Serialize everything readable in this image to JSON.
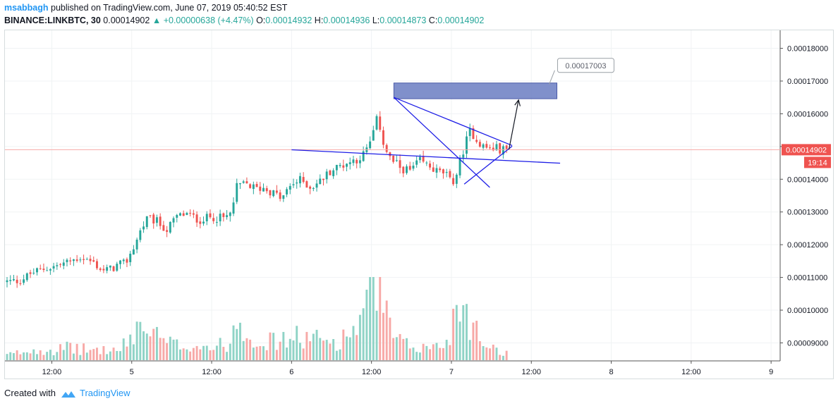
{
  "header": {
    "author": "msabbagh",
    "published_text": "published on TradingView.com, June 07, 2019 05:40:52 EST",
    "symbol": "BINANCE:LINKBTC, 30",
    "last": "0.00014902",
    "change": "+0.00000638 (+4.47%)",
    "o_label": "O:",
    "o_value": "0.00014932",
    "h_label": "H:",
    "h_value": "0.00014936",
    "l_label": "L:",
    "l_value": "0.00014873",
    "c_label": "C:",
    "c_value": "0.00014902"
  },
  "footer": {
    "created_with": "Created with",
    "brand": "TradingView"
  },
  "colors": {
    "up": "#26a69a",
    "down": "#ef5350",
    "vol_up": "#8fd3c6",
    "vol_down": "#f7a9a7",
    "line": "#1e1ee6",
    "zone": "#6a7cc2",
    "price_tag": "#ef5350"
  },
  "chart_data": {
    "type": "candlestick",
    "symbol": "BINANCE:LINKBTC",
    "interval": "30",
    "y_axis": {
      "range": [
        8.45e-05,
        0.0001855
      ],
      "ticks": [
        "0.00009000",
        "0.00010000",
        "0.00011000",
        "0.00012000",
        "0.00013000",
        "0.00014000",
        "0.00015000",
        "0.00016000",
        "0.00017000",
        "0.00018000"
      ]
    },
    "x_axis": {
      "ticks": [
        {
          "t": 0.28,
          "label": "12:00"
        },
        {
          "t": 0.78,
          "label": "5"
        },
        {
          "t": 1.28,
          "label": "12:00"
        },
        {
          "t": 1.78,
          "label": "6"
        },
        {
          "t": 2.28,
          "label": "12:00"
        },
        {
          "t": 2.78,
          "label": "7"
        },
        {
          "t": 3.28,
          "label": "12:00"
        },
        {
          "t": 3.78,
          "label": "8"
        },
        {
          "t": 4.28,
          "label": "12:00"
        },
        {
          "t": 4.78,
          "label": "9"
        }
      ]
    },
    "candle_interval_days": 0.0208333,
    "close_anchors": [
      [
        0.0,
        0.0001087
      ],
      [
        0.08,
        0.000109
      ],
      [
        0.16,
        0.0001115
      ],
      [
        0.24,
        0.0001127
      ],
      [
        0.32,
        0.0001137
      ],
      [
        0.4,
        0.000115
      ],
      [
        0.46,
        0.0001162
      ],
      [
        0.54,
        0.0001145
      ],
      [
        0.6,
        0.000112
      ],
      [
        0.66,
        0.0001128
      ],
      [
        0.7,
        0.000114
      ],
      [
        0.74,
        0.0001142
      ],
      [
        0.8,
        0.00012
      ],
      [
        0.84,
        0.000125
      ],
      [
        0.88,
        0.000128
      ],
      [
        0.94,
        0.000127
      ],
      [
        1.0,
        0.0001245
      ],
      [
        1.06,
        0.0001285
      ],
      [
        1.12,
        0.0001295
      ],
      [
        1.2,
        0.0001275
      ],
      [
        1.28,
        0.0001285
      ],
      [
        1.36,
        0.000128
      ],
      [
        1.4,
        0.0001295
      ],
      [
        1.44,
        0.000138
      ],
      [
        1.5,
        0.0001385
      ],
      [
        1.56,
        0.000137
      ],
      [
        1.6,
        0.0001375
      ],
      [
        1.66,
        0.000136
      ],
      [
        1.72,
        0.000134
      ],
      [
        1.78,
        0.0001385
      ],
      [
        1.84,
        0.0001398
      ],
      [
        1.9,
        0.0001375
      ],
      [
        1.96,
        0.0001395
      ],
      [
        2.02,
        0.0001425
      ],
      [
        2.1,
        0.0001445
      ],
      [
        2.18,
        0.000146
      ],
      [
        2.22,
        0.000147
      ],
      [
        2.26,
        0.0001495
      ],
      [
        2.32,
        0.000159
      ],
      [
        2.36,
        0.00015
      ],
      [
        2.4,
        0.000146
      ],
      [
        2.46,
        0.0001435
      ],
      [
        2.52,
        0.0001425
      ],
      [
        2.58,
        0.0001455
      ],
      [
        2.64,
        0.000144
      ],
      [
        2.7,
        0.000142
      ],
      [
        2.74,
        0.000142
      ],
      [
        2.78,
        0.0001385
      ],
      [
        2.82,
        0.0001425
      ],
      [
        2.86,
        0.00015
      ],
      [
        2.9,
        0.000155
      ],
      [
        2.94,
        0.000152
      ],
      [
        2.98,
        0.00015
      ],
      [
        3.02,
        0.0001493
      ],
      [
        3.06,
        0.0001495
      ],
      [
        3.1,
        0.000149
      ],
      [
        3.14,
        0.000149
      ]
    ],
    "volume_anchors": [
      [
        0.0,
        0.05
      ],
      [
        0.1,
        0.08
      ],
      [
        0.2,
        0.11
      ],
      [
        0.3,
        0.1
      ],
      [
        0.4,
        0.12
      ],
      [
        0.5,
        0.1
      ],
      [
        0.6,
        0.1
      ],
      [
        0.7,
        0.09
      ],
      [
        0.78,
        0.22
      ],
      [
        0.82,
        0.35
      ],
      [
        0.9,
        0.26
      ],
      [
        1.0,
        0.16
      ],
      [
        1.1,
        0.14
      ],
      [
        1.2,
        0.15
      ],
      [
        1.3,
        0.12
      ],
      [
        1.4,
        0.18
      ],
      [
        1.44,
        0.45
      ],
      [
        1.5,
        0.28
      ],
      [
        1.6,
        0.18
      ],
      [
        1.7,
        0.18
      ],
      [
        1.8,
        0.22
      ],
      [
        1.9,
        0.21
      ],
      [
        2.0,
        0.18
      ],
      [
        2.1,
        0.2
      ],
      [
        2.16,
        0.3
      ],
      [
        2.22,
        0.4
      ],
      [
        2.26,
        0.5
      ],
      [
        2.32,
        0.8
      ],
      [
        2.36,
        0.45
      ],
      [
        2.42,
        0.2
      ],
      [
        2.5,
        0.14
      ],
      [
        2.6,
        0.12
      ],
      [
        2.7,
        0.13
      ],
      [
        2.76,
        0.2
      ],
      [
        2.8,
        0.45
      ],
      [
        2.86,
        0.6
      ],
      [
        2.9,
        0.4
      ],
      [
        2.96,
        0.2
      ],
      [
        3.06,
        0.12
      ],
      [
        3.14,
        0.05
      ]
    ],
    "volume_scale_max": 0.8,
    "last_price_tag": "0.00014902",
    "countdown": "19:14",
    "drawings": {
      "descending_channel_lower": [
        [
          1.78,
          0.000149
        ],
        [
          3.46,
          0.0001449
        ]
      ],
      "flag_upper": [
        [
          2.42,
          0.000165
        ],
        [
          3.16,
          0.0001503
        ]
      ],
      "flag_lower_left": [
        [
          2.42,
          0.000165
        ],
        [
          3.02,
          0.0001375
        ]
      ],
      "triangle_lower": [
        [
          2.86,
          0.0001385
        ],
        [
          3.16,
          0.0001501
        ]
      ],
      "projection_arrow": [
        [
          3.14,
          0.0001491
        ],
        [
          3.2,
          0.0001642
        ]
      ],
      "target_zone": {
        "t0": 2.42,
        "t1": 3.44,
        "y_top": 0.0001694,
        "y_bottom": 0.0001646
      },
      "target_label": "0.00017003",
      "target_label_anchor": [
        3.4,
        0.0001694
      ]
    }
  }
}
